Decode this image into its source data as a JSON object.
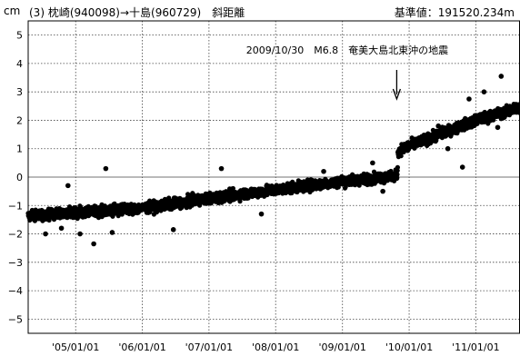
{
  "header": {
    "unit": "cm",
    "station_info": "(3) 枕崎(940098)→十島(960729)　斜距離",
    "baseline": "基準値：191520.234m"
  },
  "chart_data": {
    "type": "scatter",
    "title": "(3) 枕崎(940098)→十島(960729)　斜距離",
    "ylabel": "cm",
    "ylim": [
      -5.5,
      5.5
    ],
    "yticks": [
      5,
      4,
      3,
      2,
      1,
      0,
      -1,
      -2,
      -3,
      -4,
      -5
    ],
    "xlim": [
      "2004/04/16",
      "2011/08/31"
    ],
    "xticks": [
      {
        "date": "2005/01/01",
        "label": "'05/01/01"
      },
      {
        "date": "2006/01/01",
        "label": "'06/01/01"
      },
      {
        "date": "2007/01/01",
        "label": "'07/01/01"
      },
      {
        "date": "2008/01/01",
        "label": "'08/01/01"
      },
      {
        "date": "2009/01/01",
        "label": "'09/01/01"
      },
      {
        "date": "2010/01/01",
        "label": "'10/01/01"
      },
      {
        "date": "2011/01/01",
        "label": "'11/01/01"
      }
    ],
    "grid": true,
    "annotation": {
      "text": "2009/10/30　M6.8　奄美大島北東沖の地震",
      "date": "2009/10/30"
    },
    "trend_points": [
      {
        "date": "2004/04/16",
        "value": -1.35
      },
      {
        "date": "2005/01/01",
        "value": -1.25
      },
      {
        "date": "2006/01/01",
        "value": -1.1
      },
      {
        "date": "2007/01/01",
        "value": -0.75
      },
      {
        "date": "2008/01/01",
        "value": -0.45
      },
      {
        "date": "2009/01/01",
        "value": -0.15
      },
      {
        "date": "2009/10/29",
        "value": 0.05
      },
      {
        "date": "2009/10/31",
        "value": 0.9
      },
      {
        "date": "2010/01/01",
        "value": 1.1
      },
      {
        "date": "2011/01/01",
        "value": 2.0
      },
      {
        "date": "2011/08/31",
        "value": 2.45
      }
    ],
    "sample_points": [
      {
        "date": "2004/07/20",
        "value": -2.0
      },
      {
        "date": "2004/10/15",
        "value": -1.8
      },
      {
        "date": "2004/11/20",
        "value": -0.3
      },
      {
        "date": "2005/01/25",
        "value": -2.0
      },
      {
        "date": "2005/04/10",
        "value": -2.35
      },
      {
        "date": "2005/06/15",
        "value": 0.3
      },
      {
        "date": "2005/07/20",
        "value": -1.95
      },
      {
        "date": "2006/06/20",
        "value": -1.85
      },
      {
        "date": "2007/03/10",
        "value": 0.3
      },
      {
        "date": "2007/10/15",
        "value": -1.3
      },
      {
        "date": "2008/09/20",
        "value": 0.2
      },
      {
        "date": "2009/06/15",
        "value": 0.5
      },
      {
        "date": "2009/08/10",
        "value": -0.5
      },
      {
        "date": "2010/06/10",
        "value": 1.8
      },
      {
        "date": "2010/08/01",
        "value": 1.0
      },
      {
        "date": "2010/10/20",
        "value": 0.35
      },
      {
        "date": "2010/11/25",
        "value": 2.75
      },
      {
        "date": "2011/02/15",
        "value": 3.0
      },
      {
        "date": "2011/05/20",
        "value": 3.55
      },
      {
        "date": "2011/05/01",
        "value": 1.75
      }
    ],
    "scatter_sd": 0.18,
    "point_color": "#000000"
  }
}
